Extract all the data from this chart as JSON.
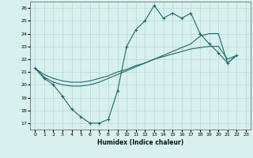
{
  "xlabel": "Humidex (Indice chaleur)",
  "background_color": "#d8f0ee",
  "grid_color": "#b8d8d5",
  "line_color": "#1a6b6b",
  "xlim": [
    -0.5,
    23.5
  ],
  "ylim": [
    16.5,
    26.5
  ],
  "xticks": [
    0,
    1,
    2,
    3,
    4,
    5,
    6,
    7,
    8,
    9,
    10,
    11,
    12,
    13,
    14,
    15,
    16,
    17,
    18,
    19,
    20,
    21,
    22,
    23
  ],
  "yticks": [
    17,
    18,
    19,
    20,
    21,
    22,
    23,
    24,
    25,
    26
  ],
  "main_y": [
    21.3,
    20.5,
    20.0,
    19.1,
    18.1,
    17.5,
    17.0,
    17.0,
    17.3,
    19.5,
    23.0,
    24.3,
    25.0,
    26.2,
    25.2,
    25.6,
    25.2,
    25.6,
    24.0,
    23.2,
    22.5,
    21.7,
    22.3
  ],
  "line2_y": [
    21.3,
    20.8,
    20.5,
    20.3,
    20.2,
    20.2,
    20.3,
    20.5,
    20.7,
    21.0,
    21.2,
    21.5,
    21.7,
    22.0,
    22.2,
    22.4,
    22.6,
    22.8,
    22.9,
    23.0,
    23.0,
    22.0,
    22.3
  ],
  "line3_y": [
    21.3,
    20.6,
    20.2,
    20.0,
    19.9,
    19.9,
    20.0,
    20.2,
    20.5,
    20.8,
    21.1,
    21.4,
    21.7,
    22.0,
    22.3,
    22.6,
    22.9,
    23.2,
    23.8,
    24.0,
    24.0,
    21.7,
    22.3
  ]
}
